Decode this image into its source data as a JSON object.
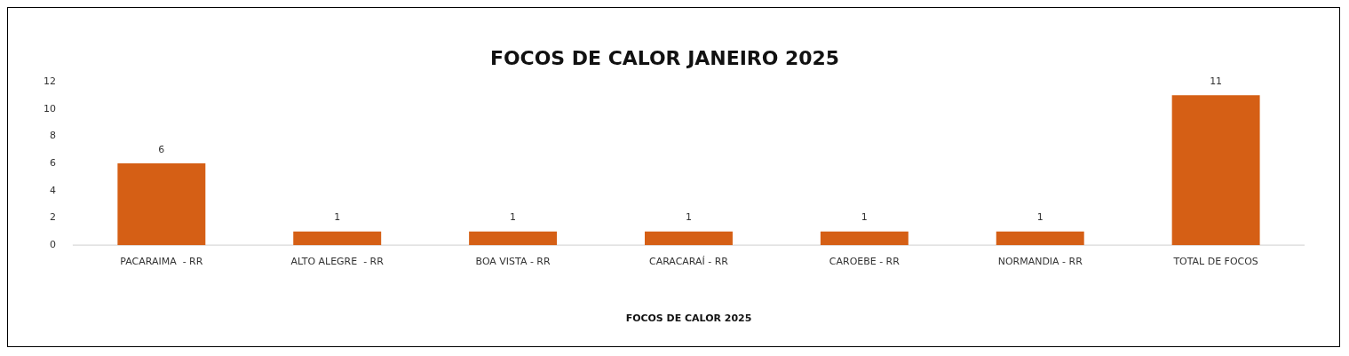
{
  "chart_data": {
    "type": "bar",
    "title": "FOCOS DE CALOR JANEIRO 2025",
    "xlabel": "FOCOS DE CALOR 2025",
    "categories": [
      "PACARAIMA  - RR",
      "ALTO ALEGRE  - RR",
      "BOA VISTA - RR",
      "CARACARAÍ - RR",
      "CAROEBE - RR",
      "NORMANDIA - RR",
      "TOTAL DE FOCOS"
    ],
    "values": [
      6,
      1,
      1,
      1,
      1,
      1,
      11
    ],
    "color": "#d55f15",
    "ylim": [
      0,
      12
    ],
    "yticks": [
      0,
      2,
      4,
      6,
      8,
      10,
      12
    ],
    "grid": false,
    "legend": false,
    "data_labels": true
  }
}
